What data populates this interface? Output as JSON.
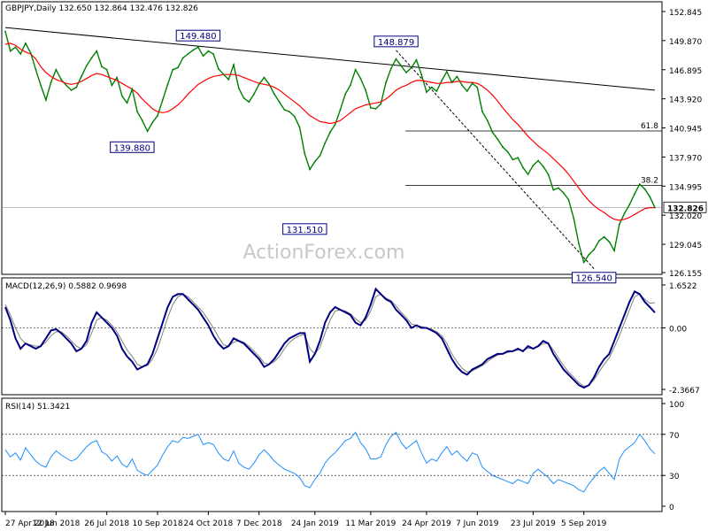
{
  "chart_data": {
    "type": "line",
    "main": {
      "title": "GBPJPY,Daily",
      "ohlc_text": "132.650 132.864 132.476 132.826",
      "ylim": [
        126.155,
        153.0
      ],
      "yticks": [
        "152.845",
        "149.870",
        "146.895",
        "143.920",
        "140.945",
        "137.970",
        "134.995",
        "132.020",
        "129.045",
        "126.155"
      ],
      "current_price": "132.826",
      "watermark": "ActionForex.com",
      "series": [
        {
          "name": "price",
          "color": "#008000",
          "values": [
            150.8,
            148.8,
            149.2,
            148.5,
            149.6,
            148.6,
            146.9,
            145.3,
            143.8,
            145.6,
            146.9,
            145.9,
            145.3,
            144.8,
            145.1,
            146.2,
            147.3,
            148.1,
            148.8,
            147.2,
            146.9,
            145.3,
            146.1,
            144.2,
            143.5,
            144.9,
            142.6,
            141.7,
            140.6,
            141.5,
            142.2,
            143.8,
            145.4,
            146.9,
            147.1,
            148.1,
            148.5,
            148.9,
            149.2,
            148.3,
            148.8,
            148.5,
            147.0,
            146.4,
            145.9,
            147.4,
            145.0,
            144.0,
            143.6,
            144.4,
            145.4,
            146.1,
            145.4,
            144.4,
            143.6,
            142.8,
            142.6,
            142.1,
            141.0,
            138.3,
            136.7,
            137.5,
            138.1,
            139.4,
            140.5,
            141.3,
            142.8,
            144.4,
            145.3,
            146.9,
            146.0,
            144.8,
            143.0,
            142.9,
            143.4,
            145.6,
            147.0,
            148.0,
            147.3,
            146.6,
            147.1,
            147.9,
            146.4,
            144.6,
            145.1,
            144.7,
            145.8,
            146.7,
            145.6,
            146.2,
            145.3,
            144.7,
            145.5,
            145.1,
            142.6,
            141.7,
            140.5,
            139.8,
            139.0,
            138.5,
            137.7,
            137.9,
            136.9,
            136.2,
            137.1,
            137.6,
            137.0,
            136.2,
            134.6,
            134.8,
            134.3,
            133.6,
            131.7,
            129.1,
            127.2,
            128.0,
            128.5,
            129.4,
            129.8,
            129.3,
            128.4,
            131.1,
            132.2,
            133.1,
            134.2,
            135.2,
            134.7,
            133.9,
            132.8
          ]
        },
        {
          "name": "MA",
          "color": "#ff0000",
          "values": [
            149.5,
            149.6,
            149.4,
            149.0,
            148.7,
            148.5,
            148.0,
            147.2,
            146.6,
            146.2,
            145.9,
            145.7,
            145.5,
            145.4,
            145.5,
            145.7,
            146.0,
            146.3,
            146.5,
            146.4,
            146.2,
            146.0,
            145.8,
            145.5,
            145.2,
            144.9,
            144.5,
            143.9,
            143.4,
            142.9,
            142.6,
            142.5,
            142.6,
            142.9,
            143.3,
            143.8,
            144.4,
            144.9,
            145.4,
            145.7,
            146.0,
            146.2,
            146.3,
            146.4,
            146.4,
            146.4,
            146.3,
            146.1,
            145.9,
            145.7,
            145.5,
            145.4,
            145.3,
            145.1,
            144.8,
            144.4,
            144.0,
            143.6,
            143.2,
            142.7,
            142.2,
            141.9,
            141.6,
            141.5,
            141.4,
            141.5,
            141.7,
            142.1,
            142.5,
            142.9,
            143.1,
            143.3,
            143.4,
            143.5,
            143.6,
            143.9,
            144.3,
            144.8,
            145.1,
            145.3,
            145.6,
            145.8,
            145.8,
            145.7,
            145.6,
            145.5,
            145.5,
            145.6,
            145.6,
            145.7,
            145.7,
            145.6,
            145.6,
            145.5,
            145.2,
            144.8,
            144.3,
            143.7,
            143.0,
            142.4,
            141.8,
            141.3,
            140.7,
            140.1,
            139.6,
            139.1,
            138.7,
            138.3,
            137.8,
            137.3,
            136.8,
            136.2,
            135.5,
            134.8,
            134.1,
            133.5,
            133.0,
            132.6,
            132.3,
            131.9,
            131.6,
            131.5,
            131.6,
            131.8,
            132.1,
            132.4,
            132.7,
            132.8,
            132.8
          ]
        }
      ],
      "trendline": {
        "from": {
          "x": "27 Apr 2018",
          "y": 151.2
        },
        "to": {
          "x": "13 Sep 2019",
          "y": 144.8
        }
      },
      "dashed_line": {
        "from": {
          "x": "11 Mar 2019",
          "y": 148.879
        },
        "to": {
          "x": "12 Aug 2019",
          "y": 126.54
        }
      },
      "fib_levels": [
        {
          "label": "61.8",
          "value": 140.63
        },
        {
          "label": "38.2",
          "value": 135.07
        }
      ],
      "annotations": [
        {
          "text": "149.480",
          "index": 38,
          "value": 149.48,
          "pos": "above"
        },
        {
          "text": "139.880",
          "index": 25,
          "value": 139.88,
          "pos": "below"
        },
        {
          "text": "131.510",
          "index": 59,
          "value": 131.51,
          "pos": "below"
        },
        {
          "text": "148.879",
          "index": 77,
          "value": 148.879,
          "pos": "above"
        },
        {
          "text": "126.540",
          "index": 116,
          "value": 126.54,
          "pos": "below"
        }
      ]
    },
    "macd": {
      "title": "MACD(12,26,9) 0.5882 0.9698",
      "ylim": [
        -2.3667,
        1.6522
      ],
      "yticks": [
        "1.6522",
        "0.00",
        "-2.3667"
      ],
      "series": [
        {
          "name": "MACD",
          "color": "#000080",
          "values": [
            0.8,
            0.3,
            -0.4,
            -0.8,
            -0.6,
            -0.7,
            -0.8,
            -0.7,
            -0.4,
            -0.1,
            -0.05,
            -0.2,
            -0.4,
            -0.6,
            -0.9,
            -0.8,
            -0.5,
            0.2,
            0.6,
            0.4,
            0.2,
            0.0,
            -0.3,
            -0.8,
            -1.1,
            -1.3,
            -1.6,
            -1.5,
            -1.4,
            -1.0,
            -0.4,
            0.2,
            0.8,
            1.2,
            1.3,
            1.3,
            1.1,
            0.9,
            0.7,
            0.4,
            0.1,
            -0.3,
            -0.6,
            -0.8,
            -0.7,
            -0.4,
            -0.5,
            -0.6,
            -0.8,
            -1.0,
            -1.2,
            -1.5,
            -1.4,
            -1.2,
            -0.9,
            -0.6,
            -0.4,
            -0.3,
            -0.2,
            -0.2,
            -1.3,
            -1.0,
            -0.5,
            0.2,
            0.6,
            0.8,
            0.7,
            0.6,
            0.5,
            0.2,
            0.1,
            0.4,
            0.9,
            1.5,
            1.3,
            1.1,
            1.0,
            0.7,
            0.5,
            0.3,
            0.0,
            0.1,
            0.0,
            0.0,
            -0.1,
            -0.2,
            -0.4,
            -0.8,
            -1.2,
            -1.5,
            -1.7,
            -1.8,
            -1.6,
            -1.5,
            -1.4,
            -1.2,
            -1.1,
            -1.0,
            -1.0,
            -0.9,
            -0.9,
            -0.8,
            -0.9,
            -0.7,
            -0.8,
            -0.7,
            -0.5,
            -0.6,
            -1.0,
            -1.3,
            -1.6,
            -1.8,
            -2.0,
            -2.2,
            -2.3,
            -2.2,
            -1.9,
            -1.5,
            -1.2,
            -1.0,
            -0.5,
            0.0,
            0.5,
            1.0,
            1.4,
            1.3,
            1.0,
            0.8,
            0.59
          ]
        },
        {
          "name": "Signal",
          "color": "#808080",
          "values": [
            0.9,
            0.5,
            0.0,
            -0.4,
            -0.6,
            -0.65,
            -0.7,
            -0.7,
            -0.55,
            -0.3,
            -0.15,
            -0.15,
            -0.3,
            -0.5,
            -0.7,
            -0.8,
            -0.65,
            -0.2,
            0.3,
            0.4,
            0.3,
            0.1,
            -0.15,
            -0.5,
            -0.85,
            -1.1,
            -1.4,
            -1.5,
            -1.45,
            -1.2,
            -0.8,
            -0.2,
            0.4,
            0.9,
            1.2,
            1.3,
            1.2,
            1.0,
            0.8,
            0.6,
            0.3,
            0.0,
            -0.35,
            -0.65,
            -0.7,
            -0.55,
            -0.5,
            -0.55,
            -0.7,
            -0.9,
            -1.1,
            -1.35,
            -1.4,
            -1.3,
            -1.1,
            -0.8,
            -0.55,
            -0.4,
            -0.3,
            -0.25,
            -0.8,
            -1.0,
            -0.75,
            -0.2,
            0.3,
            0.65,
            0.7,
            0.65,
            0.55,
            0.35,
            0.2,
            0.3,
            0.65,
            1.2,
            1.3,
            1.15,
            1.05,
            0.85,
            0.6,
            0.4,
            0.15,
            0.1,
            0.05,
            0.0,
            -0.05,
            -0.15,
            -0.3,
            -0.6,
            -1.0,
            -1.3,
            -1.55,
            -1.7,
            -1.65,
            -1.55,
            -1.45,
            -1.3,
            -1.15,
            -1.05,
            -1.0,
            -0.95,
            -0.9,
            -0.85,
            -0.87,
            -0.78,
            -0.8,
            -0.73,
            -0.6,
            -0.6,
            -0.85,
            -1.15,
            -1.45,
            -1.7,
            -1.9,
            -2.1,
            -2.25,
            -2.2,
            -2.0,
            -1.7,
            -1.4,
            -1.15,
            -0.75,
            -0.3,
            0.2,
            0.7,
            1.2,
            1.3,
            1.1,
            0.95,
            0.97
          ]
        }
      ]
    },
    "rsi": {
      "title": "RSI(14) 51.3421",
      "ylim": [
        0,
        100
      ],
      "yticks": [
        "100",
        "70",
        "30",
        "0"
      ],
      "levels": [
        70,
        30
      ],
      "series": [
        {
          "name": "RSI",
          "color": "#1e90ff",
          "values": [
            55,
            48,
            52,
            45,
            57,
            50,
            44,
            40,
            38,
            48,
            54,
            50,
            47,
            44,
            46,
            52,
            58,
            62,
            64,
            53,
            50,
            44,
            49,
            41,
            38,
            46,
            35,
            32,
            30,
            35,
            40,
            50,
            58,
            64,
            62,
            67,
            66,
            68,
            70,
            60,
            62,
            60,
            52,
            46,
            44,
            54,
            42,
            38,
            36,
            42,
            50,
            55,
            50,
            44,
            40,
            36,
            34,
            32,
            28,
            20,
            18,
            26,
            32,
            42,
            48,
            52,
            58,
            64,
            66,
            72,
            62,
            56,
            46,
            46,
            48,
            60,
            68,
            72,
            62,
            56,
            60,
            64,
            52,
            42,
            46,
            44,
            52,
            58,
            50,
            54,
            48,
            44,
            52,
            50,
            38,
            34,
            30,
            28,
            26,
            24,
            22,
            26,
            24,
            22,
            32,
            36,
            32,
            28,
            22,
            26,
            24,
            22,
            20,
            16,
            14,
            22,
            28,
            34,
            38,
            32,
            26,
            46,
            54,
            58,
            62,
            70,
            64,
            56,
            51
          ]
        }
      ]
    },
    "x_tick_labels": [
      {
        "label": "27 Apr 2018",
        "index": 0
      },
      {
        "label": "12 Jun 2018",
        "index": 10
      },
      {
        "label": "26 Jul 2018",
        "index": 20
      },
      {
        "label": "10 Sep 2018",
        "index": 30
      },
      {
        "label": "24 Oct 2018",
        "index": 40
      },
      {
        "label": "7 Dec 2018",
        "index": 50
      },
      {
        "label": "24 Jan 2019",
        "index": 61
      },
      {
        "label": "11 Mar 2019",
        "index": 72
      },
      {
        "label": "24 Apr 2019",
        "index": 83
      },
      {
        "label": "7 Jun 2019",
        "index": 93
      },
      {
        "label": "23 Jul 2019",
        "index": 104
      },
      {
        "label": "5 Sep 2019",
        "index": 114
      }
    ],
    "colors": {
      "grid": "#000000",
      "level_line": "#000000",
      "watermark": "#c8c8c8",
      "annotation_border": "#000080",
      "annotation_text": "#000080",
      "current_price_bg": "#ffffff"
    }
  }
}
